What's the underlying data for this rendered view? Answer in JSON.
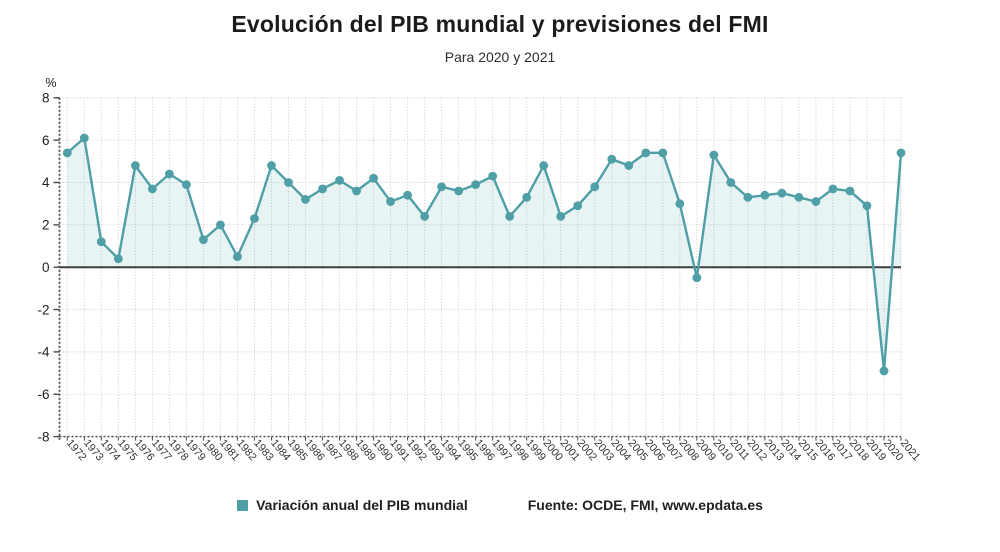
{
  "chart_data": {
    "type": "line",
    "title": "Evolución del PIB mundial y previsiones del FMI",
    "subtitle": "Para 2020 y 2021",
    "unit": "%",
    "series": "Variación anual del PIB mundial",
    "categories": [
      "1972",
      "1973",
      "1974",
      "1975",
      "1976",
      "1977",
      "1978",
      "1979",
      "1980",
      "1981",
      "1982",
      "1983",
      "1984",
      "1985",
      "1986",
      "1987",
      "1988",
      "1989",
      "1990",
      "1991",
      "1992",
      "1993",
      "1994",
      "1995",
      "1996",
      "1997",
      "1998",
      "1999",
      "2000",
      "2001",
      "2002",
      "2003",
      "2004",
      "2005",
      "2006",
      "2007",
      "2008",
      "2009",
      "2010",
      "2011",
      "2012",
      "2013",
      "2014",
      "2015",
      "2016",
      "2017",
      "2018",
      "2019",
      "2020",
      "2021"
    ],
    "values": [
      5.4,
      6.1,
      1.2,
      0.4,
      4.8,
      3.7,
      4.4,
      3.9,
      1.3,
      2.0,
      0.5,
      2.3,
      4.8,
      4.0,
      3.2,
      3.7,
      4.1,
      3.6,
      4.2,
      3.1,
      3.4,
      2.4,
      3.8,
      3.6,
      3.9,
      4.3,
      2.4,
      3.3,
      4.8,
      2.4,
      2.9,
      3.8,
      5.1,
      4.8,
      5.4,
      5.4,
      3.0,
      -0.5,
      5.3,
      4.0,
      3.3,
      3.4,
      3.5,
      3.3,
      3.1,
      3.7,
      3.6,
      2.9,
      -4.9,
      5.4
    ],
    "ylim": [
      -8,
      8
    ],
    "ytick_step": 2,
    "baseline": 0,
    "grid": true,
    "legend_position": "bottom"
  },
  "footer": {
    "source": "Fuente: OCDE, FMI, www.epdata.es"
  },
  "colors": {
    "accent": "#4E9FA6",
    "area": "rgba(78,159,166,0.13)",
    "grid": "#c9c9c9",
    "zero_line": "#3f3f3f",
    "axis": "#4a4a4a",
    "tick_label": "#222222",
    "year_label": "#333333"
  }
}
